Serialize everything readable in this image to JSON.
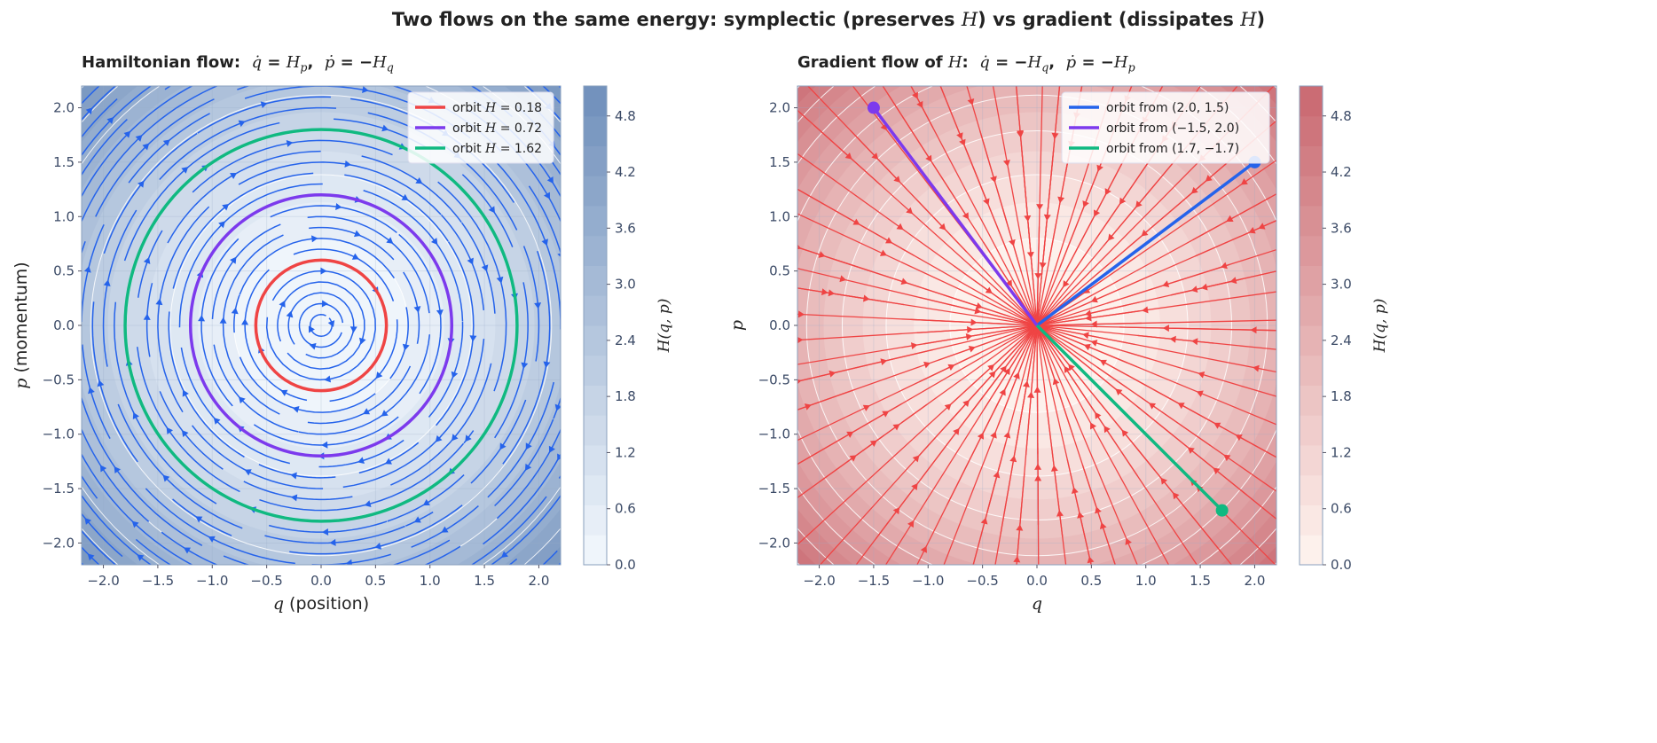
{
  "suptitle": "Two flows on the same energy: symplectic (preserves H) vs gradient (dissipates H)",
  "chart_data": [
    {
      "type": "streamplot+contourf",
      "title": "Hamiltonian flow:  q̇ = H_p,  ṗ = −H_q",
      "xlabel": "q  (position)",
      "ylabel": "p  (momentum)",
      "xlim": [
        -2.2,
        2.2
      ],
      "ylim": [
        -2.2,
        2.2
      ],
      "xticks": [
        "−2.0",
        "−1.5",
        "−1.0",
        "−0.5",
        "0.0",
        "0.5",
        "1.0",
        "1.5",
        "2.0"
      ],
      "yticks": [
        "−2.0",
        "−1.5",
        "−1.0",
        "−0.5",
        "0.0",
        "0.5",
        "1.0",
        "1.5",
        "2.0"
      ],
      "grid": true,
      "field": "H(q,p) = (q² + p²)/2",
      "flow": "q̇ = p, ṗ = −q",
      "stream_color": "#2563eb",
      "cmap": [
        "#f3f8fd",
        "#6f8fbb"
      ],
      "legend_position": "top-right",
      "series": [
        {
          "name": "orbit H = 0.18",
          "H": 0.18,
          "color": "#ef4444"
        },
        {
          "name": "orbit H = 0.72",
          "H": 0.72,
          "color": "#7c3aed"
        },
        {
          "name": "orbit H = 1.62",
          "H": 1.62,
          "color": "#10b981"
        }
      ],
      "colorbar": {
        "label": "H(q, p)",
        "range": [
          0,
          5.12
        ],
        "ticks": [
          "0.0",
          "0.6",
          "1.2",
          "1.8",
          "2.4",
          "3.0",
          "3.6",
          "4.2",
          "4.8"
        ]
      }
    },
    {
      "type": "streamplot+contourf",
      "title": "Gradient flow of H:  q̇ = −H_q,  ṗ = −H_p",
      "xlabel": "q",
      "ylabel": "p",
      "xlim": [
        -2.2,
        2.2
      ],
      "ylim": [
        -2.2,
        2.2
      ],
      "xticks": [
        "−2.0",
        "−1.5",
        "−1.0",
        "−0.5",
        "0.0",
        "0.5",
        "1.0",
        "1.5",
        "2.0"
      ],
      "yticks": [
        "−2.0",
        "−1.5",
        "−1.0",
        "−0.5",
        "0.0",
        "0.5",
        "1.0",
        "1.5",
        "2.0"
      ],
      "grid": true,
      "flow": "q̇ = −q, ṗ = −p",
      "stream_color": "#ef4444",
      "cmap": [
        "#fff5f0",
        "#c96870"
      ],
      "legend_position": "top-right",
      "series": [
        {
          "name": "orbit from (2.0, 1.5)",
          "start": [
            2.0,
            1.5
          ],
          "color": "#2563eb"
        },
        {
          "name": "orbit from (−1.5, 2.0)",
          "start": [
            -1.5,
            2.0
          ],
          "color": "#7c3aed"
        },
        {
          "name": "orbit from (1.7, −1.7)",
          "start": [
            1.7,
            -1.7
          ],
          "color": "#10b981"
        }
      ],
      "colorbar": {
        "label": "H(q, p)",
        "range": [
          0,
          5.12
        ],
        "ticks": [
          "0.0",
          "0.6",
          "1.2",
          "1.8",
          "2.4",
          "3.0",
          "3.6",
          "4.2",
          "4.8"
        ]
      }
    }
  ]
}
